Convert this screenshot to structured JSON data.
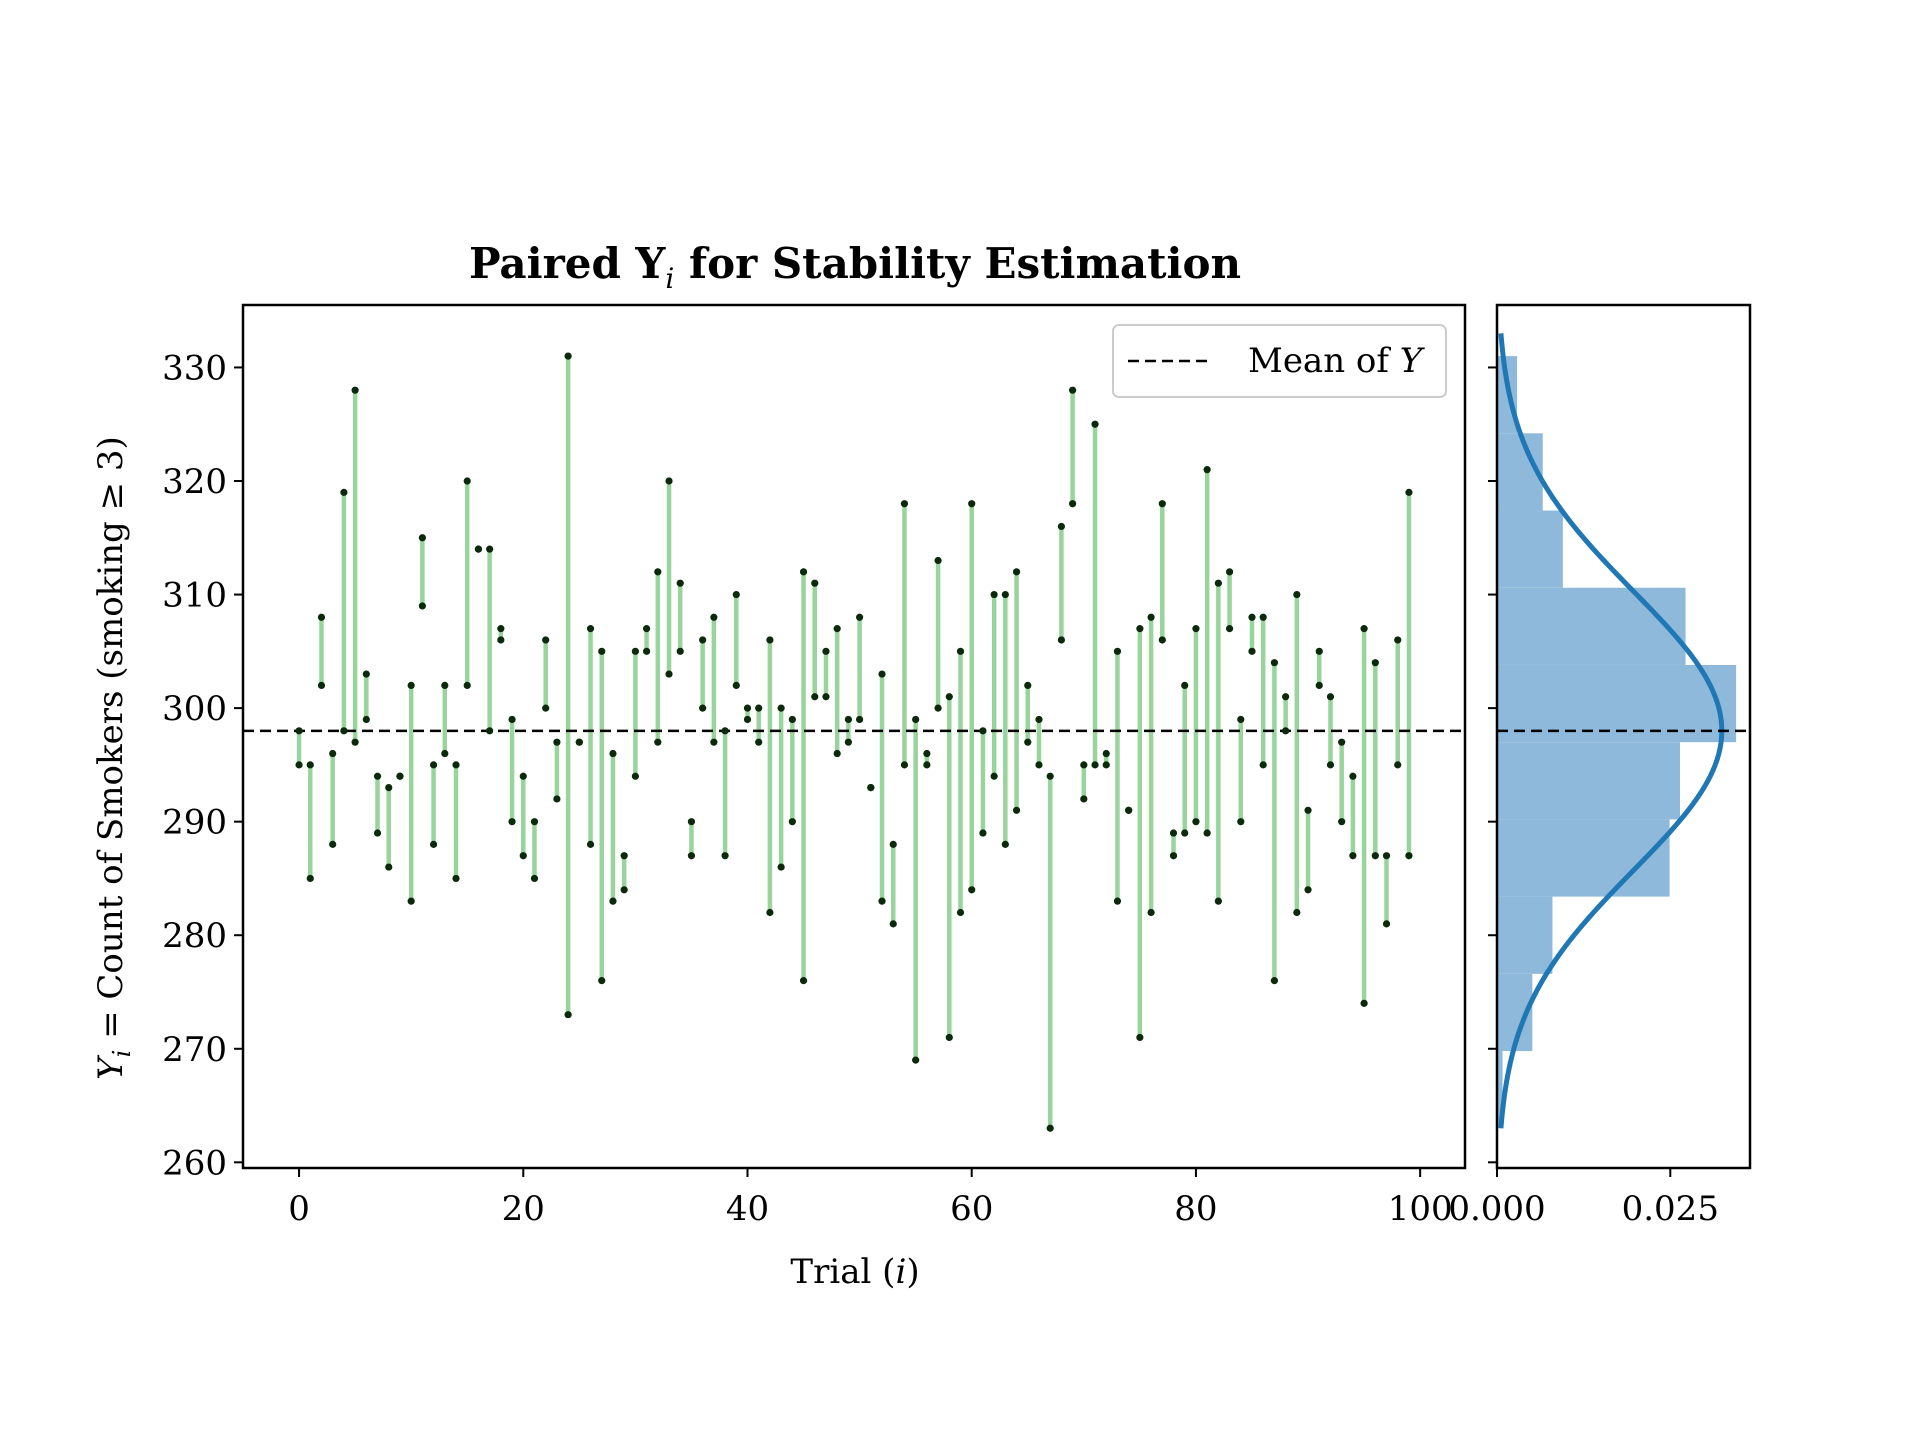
{
  "chart_data": {
    "type": "scatter",
    "title": "Paired Y",
    "title_sub": "i",
    "title_rest": " for Stability Estimation",
    "xlabel_prefix": "Trial (",
    "xlabel_var": "i",
    "xlabel_suffix": ")",
    "ylabel_var": "Y",
    "ylabel_sub": "i",
    "ylabel_rest": " = Count of Smokers (smoking ≥ 3)",
    "xlim": [
      -5,
      104
    ],
    "ylim": [
      259.5,
      335.5
    ],
    "xticks": [
      0,
      20,
      40,
      60,
      80,
      100
    ],
    "xtick_labels": [
      "0",
      "20",
      "40",
      "60",
      "80",
      "100"
    ],
    "yticks": [
      260,
      270,
      280,
      290,
      300,
      310,
      320,
      330
    ],
    "ytick_labels": [
      "260",
      "270",
      "280",
      "290",
      "300",
      "310",
      "320",
      "330"
    ],
    "mean_value": 298,
    "legend_label_prefix": "Mean of ",
    "legend_label_var": "Y",
    "legend_position": "top-right",
    "colors": {
      "segment": "#98d49b",
      "point": "#0b2a0b",
      "mean_line": "#000000",
      "hist_fill": "#8fb9da",
      "kde_line": "#1f77b4"
    },
    "pairs": [
      [
        0,
        298,
        295
      ],
      [
        1,
        295,
        285
      ],
      [
        2,
        308,
        302
      ],
      [
        3,
        296,
        288
      ],
      [
        4,
        319,
        298
      ],
      [
        5,
        328,
        297
      ],
      [
        6,
        303,
        299
      ],
      [
        7,
        294,
        289
      ],
      [
        8,
        293,
        286
      ],
      [
        9,
        294,
        294
      ],
      [
        10,
        302,
        283
      ],
      [
        11,
        315,
        309
      ],
      [
        12,
        295,
        288
      ],
      [
        13,
        302,
        296
      ],
      [
        14,
        295,
        285
      ],
      [
        15,
        320,
        302
      ],
      [
        16,
        314,
        314
      ],
      [
        17,
        314,
        298
      ],
      [
        18,
        307,
        306
      ],
      [
        19,
        299,
        290
      ],
      [
        20,
        294,
        287
      ],
      [
        21,
        290,
        285
      ],
      [
        22,
        306,
        300
      ],
      [
        23,
        297,
        292
      ],
      [
        24,
        331,
        273
      ],
      [
        25,
        297,
        297
      ],
      [
        26,
        307,
        288
      ],
      [
        27,
        305,
        276
      ],
      [
        28,
        296,
        283
      ],
      [
        29,
        287,
        284
      ],
      [
        30,
        305,
        294
      ],
      [
        31,
        307,
        305
      ],
      [
        32,
        312,
        297
      ],
      [
        33,
        320,
        303
      ],
      [
        34,
        311,
        305
      ],
      [
        35,
        290,
        287
      ],
      [
        36,
        306,
        300
      ],
      [
        37,
        308,
        297
      ],
      [
        38,
        298,
        287
      ],
      [
        39,
        310,
        302
      ],
      [
        40,
        300,
        299
      ],
      [
        41,
        300,
        297
      ],
      [
        42,
        306,
        282
      ],
      [
        43,
        300,
        286
      ],
      [
        44,
        299,
        290
      ],
      [
        45,
        312,
        276
      ],
      [
        46,
        311,
        301
      ],
      [
        47,
        305,
        301
      ],
      [
        48,
        307,
        296
      ],
      [
        49,
        299,
        297
      ],
      [
        50,
        308,
        299
      ],
      [
        51,
        293,
        293
      ],
      [
        52,
        303,
        283
      ],
      [
        53,
        288,
        281
      ],
      [
        54,
        318,
        295
      ],
      [
        55,
        299,
        269
      ],
      [
        56,
        296,
        295
      ],
      [
        57,
        313,
        300
      ],
      [
        58,
        301,
        271
      ],
      [
        59,
        305,
        282
      ],
      [
        60,
        318,
        284
      ],
      [
        61,
        298,
        289
      ],
      [
        62,
        310,
        294
      ],
      [
        63,
        310,
        288
      ],
      [
        64,
        312,
        291
      ],
      [
        65,
        302,
        297
      ],
      [
        66,
        299,
        295
      ],
      [
        67,
        294,
        263
      ],
      [
        68,
        316,
        306
      ],
      [
        69,
        328,
        318
      ],
      [
        70,
        295,
        292
      ],
      [
        71,
        325,
        295
      ],
      [
        72,
        296,
        295
      ],
      [
        73,
        305,
        283
      ],
      [
        74,
        291,
        291
      ],
      [
        75,
        307,
        271
      ],
      [
        76,
        308,
        282
      ],
      [
        77,
        318,
        306
      ],
      [
        78,
        289,
        287
      ],
      [
        79,
        302,
        289
      ],
      [
        80,
        307,
        290
      ],
      [
        81,
        321,
        289
      ],
      [
        82,
        311,
        283
      ],
      [
        83,
        312,
        307
      ],
      [
        84,
        299,
        290
      ],
      [
        85,
        308,
        305
      ],
      [
        86,
        308,
        295
      ],
      [
        87,
        304,
        276
      ],
      [
        88,
        301,
        298
      ],
      [
        89,
        310,
        282
      ],
      [
        90,
        291,
        284
      ],
      [
        91,
        305,
        302
      ],
      [
        92,
        301,
        295
      ],
      [
        93,
        297,
        290
      ],
      [
        94,
        294,
        287
      ],
      [
        95,
        307,
        274
      ],
      [
        96,
        304,
        287
      ],
      [
        97,
        287,
        281
      ],
      [
        98,
        306,
        295
      ],
      [
        99,
        319,
        287
      ]
    ],
    "hist": {
      "xlim": [
        0,
        0.0365
      ],
      "xticks": [
        0,
        0.025
      ],
      "xtick_labels": [
        "0.000",
        "0.025"
      ],
      "bins": [
        {
          "lo": 263,
          "hi": 269.8,
          "density": 0.0008
        },
        {
          "lo": 269.8,
          "hi": 276.6,
          "density": 0.0051
        },
        {
          "lo": 276.6,
          "hi": 283.4,
          "density": 0.008
        },
        {
          "lo": 283.4,
          "hi": 290.2,
          "density": 0.0249
        },
        {
          "lo": 290.2,
          "hi": 297.0,
          "density": 0.0264
        },
        {
          "lo": 297.0,
          "hi": 303.8,
          "density": 0.0345
        },
        {
          "lo": 303.8,
          "hi": 310.6,
          "density": 0.0272
        },
        {
          "lo": 310.6,
          "hi": 317.4,
          "density": 0.0095
        },
        {
          "lo": 317.4,
          "hi": 324.2,
          "density": 0.0066
        },
        {
          "lo": 324.2,
          "hi": 331.0,
          "density": 0.0029
        }
      ],
      "kde_mean": 298,
      "kde_sd": 12.3
    }
  }
}
